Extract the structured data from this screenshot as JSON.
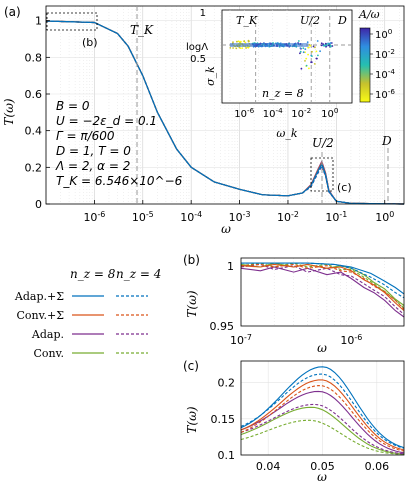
{
  "chart_data": [
    {
      "id": "a",
      "panel_label": "(a)",
      "type": "line",
      "xscale": "log",
      "xlim": [
        1e-07,
        2.5
      ],
      "ylim": [
        0,
        1.08
      ],
      "xlabel": "ω",
      "ylabel": "T(ω)",
      "x_tick_labels": [
        "10^-6",
        "10^-5",
        "10^-4",
        "10^-3",
        "10^-2",
        "10^-1",
        "10^0"
      ],
      "y_tick_labels": [
        "0",
        "0.2",
        "0.4",
        "0.6",
        "0.8",
        "1"
      ],
      "params": [
        "B = 0",
        "U = −2ε_d = 0.1",
        "Γ = π/600",
        "D = 1, T = 0",
        "Λ = 2, α = 2",
        "T_K = 6.546×10^−6"
      ],
      "vlines": [
        {
          "label": "T_K",
          "x": 6.546e-06
        },
        {
          "label": "U/2",
          "x": 0.05
        },
        {
          "label": "D",
          "x": 1
        }
      ],
      "zoom_box_labels": [
        "(b)",
        "(c)"
      ],
      "series": [
        {
          "x": [
            1e-07,
            1e-06,
            3e-06,
            5e-06,
            1e-05,
            2e-05,
            5e-05,
            0.0001,
            0.0003,
            0.001,
            0.003,
            0.01,
            0.02,
            0.03,
            0.04,
            0.05,
            0.06,
            0.07,
            0.1,
            0.2,
            0.5,
            1,
            2.5
          ],
          "y": [
            0.998,
            0.99,
            0.93,
            0.86,
            0.7,
            0.5,
            0.3,
            0.2,
            0.12,
            0.08,
            0.05,
            0.045,
            0.06,
            0.1,
            0.17,
            0.22,
            0.16,
            0.07,
            0.015,
            0.004,
            0.002,
            0.001,
            0
          ]
        }
      ]
    },
    {
      "id": "inset",
      "type": "scatter",
      "xscale": "log",
      "xlabel": "ω_k",
      "ylabel": "σ_k",
      "y_tick_labels": [
        "0.5",
        "1"
      ],
      "x_tick_labels": [
        "10^-6",
        "10^-4",
        "10^-2",
        "10^0"
      ],
      "annotations": [
        "T_K",
        "U/2",
        "D",
        "logΛ",
        "n_z = 8"
      ],
      "colorbar": {
        "label": "A/ω",
        "tick_labels": [
          "10^0",
          "10^-2",
          "10^-4",
          "10^-6"
        ]
      }
    },
    {
      "id": "b",
      "panel_label": "(b)",
      "type": "line",
      "xscale": "log",
      "xlim": [
        1e-07,
        3e-06
      ],
      "ylim": [
        0.95,
        1.003
      ],
      "xlabel": "ω",
      "ylabel": "T(ω)",
      "x_tick_labels": [
        "10^-7",
        "10^-6"
      ],
      "y_tick_labels": [
        "0.95",
        "1"
      ],
      "series_ref": "legend",
      "curves": [
        {
          "series": 0,
          "x": [
            1e-07,
            2e-07,
            4e-07,
            7e-07,
            1e-06,
            1.5e-06,
            2e-06,
            2.5e-06,
            3e-06
          ],
          "y": [
            0.999,
            0.999,
            0.999,
            0.998,
            0.996,
            0.991,
            0.985,
            0.98,
            0.975
          ]
        },
        {
          "series": 1,
          "x": [
            1e-07,
            2e-07,
            4e-07,
            7e-07,
            1e-06,
            1.5e-06,
            2e-06,
            2.5e-06,
            3e-06
          ],
          "y": [
            0.999,
            0.999,
            0.999,
            0.998,
            0.995,
            0.988,
            0.982,
            0.976,
            0.972
          ]
        },
        {
          "series": 2,
          "x": [
            1e-07,
            1.5e-07,
            2e-07,
            3e-07,
            4e-07,
            6e-07,
            8e-07,
            1e-06,
            1.3e-06,
            1.6e-06,
            2e-06,
            2.5e-06,
            3e-06
          ],
          "y": [
            0.997,
            0.996,
            0.998,
            0.996,
            0.998,
            0.995,
            0.996,
            0.993,
            0.986,
            0.982,
            0.976,
            0.968,
            0.962
          ]
        },
        {
          "series": 3,
          "x": [
            1e-07,
            1.5e-07,
            2e-07,
            3e-07,
            4e-07,
            6e-07,
            8e-07,
            1e-06,
            1.3e-06,
            1.6e-06,
            2e-06,
            2.5e-06,
            3e-06
          ],
          "y": [
            0.997,
            0.998,
            0.996,
            0.998,
            0.995,
            0.997,
            0.993,
            0.992,
            0.987,
            0.981,
            0.977,
            0.97,
            0.963
          ]
        },
        {
          "series": 4,
          "x": [
            1e-07,
            1.5e-07,
            2e-07,
            3e-07,
            4e-07,
            6e-07,
            8e-07,
            1e-06,
            1.3e-06,
            1.6e-06,
            2e-06,
            2.5e-06,
            3e-06
          ],
          "y": [
            0.995,
            0.993,
            0.996,
            0.992,
            0.995,
            0.99,
            0.992,
            0.987,
            0.98,
            0.976,
            0.97,
            0.962,
            0.957
          ]
        },
        {
          "series": 5,
          "x": [
            1e-07,
            1.5e-07,
            2e-07,
            3e-07,
            4e-07,
            6e-07,
            8e-07,
            1e-06,
            1.3e-06,
            1.6e-06,
            2e-06,
            2.5e-06,
            3e-06
          ],
          "y": [
            0.996,
            0.998,
            0.994,
            0.997,
            0.992,
            0.995,
            0.99,
            0.989,
            0.983,
            0.978,
            0.973,
            0.965,
            0.959
          ]
        },
        {
          "series": 6,
          "x": [
            1e-07,
            1.5e-07,
            2e-07,
            3e-07,
            4e-07,
            6e-07,
            8e-07,
            1e-06,
            1.3e-06,
            1.6e-06,
            2e-06,
            2.5e-06,
            3e-06
          ],
          "y": [
            0.998,
            0.996,
            0.999,
            0.996,
            0.998,
            0.995,
            0.997,
            0.995,
            0.99,
            0.984,
            0.979,
            0.971,
            0.966
          ]
        },
        {
          "series": 7,
          "x": [
            1e-07,
            1.5e-07,
            2e-07,
            3e-07,
            4e-07,
            6e-07,
            8e-07,
            1e-06,
            1.3e-06,
            1.6e-06,
            2e-06,
            2.5e-06,
            3e-06
          ],
          "y": [
            0.997,
            0.999,
            0.996,
            0.999,
            0.996,
            0.998,
            0.994,
            0.994,
            0.988,
            0.983,
            0.977,
            0.97,
            0.964
          ]
        }
      ]
    },
    {
      "id": "c",
      "panel_label": "(c)",
      "type": "line",
      "xlim": [
        0.035,
        0.065
      ],
      "ylim": [
        0.1,
        0.23
      ],
      "xlabel": "ω",
      "ylabel": "T(ω)",
      "x_tick_labels": [
        "0.04",
        "0.05",
        "0.06"
      ],
      "y_tick_labels": [
        "0.1",
        "0.15",
        "0.2"
      ],
      "curves": [
        {
          "series": 0,
          "peak_x": 0.05,
          "peak": 0.222,
          "left": 0.125,
          "right": 0.105
        },
        {
          "series": 1,
          "peak_x": 0.0498,
          "peak": 0.212,
          "left": 0.128,
          "right": 0.105
        },
        {
          "series": 2,
          "peak_x": 0.0497,
          "peak": 0.204,
          "left": 0.123,
          "right": 0.103
        },
        {
          "series": 3,
          "peak_x": 0.0495,
          "peak": 0.196,
          "left": 0.12,
          "right": 0.102
        },
        {
          "series": 4,
          "peak_x": 0.0493,
          "peak": 0.188,
          "left": 0.125,
          "right": 0.1
        },
        {
          "series": 5,
          "peak_x": 0.0485,
          "peak": 0.17,
          "left": 0.122,
          "right": 0.1
        },
        {
          "series": 6,
          "peak_x": 0.048,
          "peak": 0.166,
          "left": 0.118,
          "right": 0.1
        },
        {
          "series": 7,
          "peak_x": 0.0475,
          "peak": 0.148,
          "left": 0.113,
          "right": 0.1
        }
      ]
    }
  ],
  "legend": {
    "col_headers": [
      "n_z = 8",
      "n_z = 4"
    ],
    "rows": [
      {
        "label": "Adap.+Σ",
        "color": "#0072BD"
      },
      {
        "label": "Conv.+Σ",
        "color": "#D95319"
      },
      {
        "label": "Adap.",
        "color": "#7E2F8E"
      },
      {
        "label": "Conv.",
        "color": "#77AC30"
      }
    ]
  }
}
